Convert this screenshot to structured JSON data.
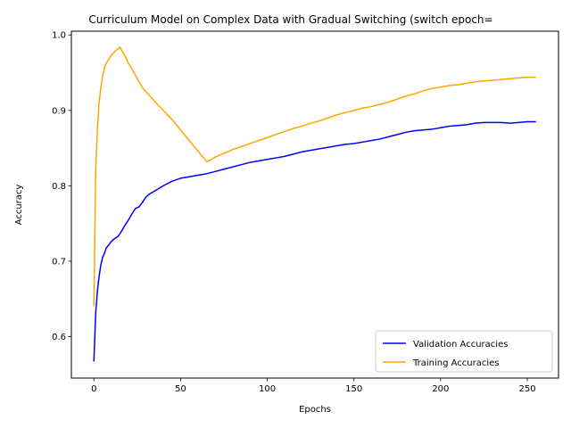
{
  "chart_data": {
    "type": "line",
    "title": "Curriculum Model on Complex Data with Gradual Switching (switch epoch=",
    "xlabel": "Epochs",
    "ylabel": "Accuracy",
    "xlim": [
      -13,
      268
    ],
    "ylim": [
      0.545,
      1.005
    ],
    "xticks": [
      0,
      50,
      100,
      150,
      200,
      250
    ],
    "yticks": [
      0.6,
      0.7,
      0.8,
      0.9,
      1.0
    ],
    "ytick_labels": [
      "0.6",
      "0.7",
      "0.8",
      "0.9",
      "1.0"
    ],
    "grid": false,
    "legend_position": "lower right",
    "series": [
      {
        "name": "Validation Accuracies",
        "color": "#0000ff",
        "x": [
          0,
          1,
          2,
          3,
          4,
          5,
          6,
          7,
          8,
          10,
          12,
          14,
          16,
          18,
          20,
          22,
          24,
          26,
          28,
          30,
          32,
          35,
          40,
          45,
          50,
          55,
          60,
          65,
          70,
          75,
          80,
          85,
          90,
          95,
          100,
          105,
          110,
          115,
          120,
          125,
          130,
          135,
          140,
          145,
          150,
          155,
          160,
          165,
          170,
          175,
          180,
          185,
          190,
          195,
          200,
          205,
          210,
          215,
          220,
          225,
          230,
          235,
          240,
          245,
          250,
          255
        ],
        "y": [
          0.567,
          0.63,
          0.66,
          0.68,
          0.695,
          0.705,
          0.71,
          0.717,
          0.72,
          0.726,
          0.73,
          0.733,
          0.74,
          0.748,
          0.755,
          0.763,
          0.77,
          0.772,
          0.778,
          0.785,
          0.789,
          0.793,
          0.8,
          0.806,
          0.81,
          0.812,
          0.814,
          0.816,
          0.819,
          0.822,
          0.825,
          0.828,
          0.831,
          0.833,
          0.835,
          0.837,
          0.839,
          0.842,
          0.845,
          0.847,
          0.849,
          0.851,
          0.853,
          0.855,
          0.856,
          0.858,
          0.86,
          0.862,
          0.865,
          0.868,
          0.871,
          0.873,
          0.874,
          0.875,
          0.877,
          0.879,
          0.88,
          0.881,
          0.883,
          0.884,
          0.884,
          0.884,
          0.883,
          0.884,
          0.885,
          0.885
        ]
      },
      {
        "name": "Training Accuracies",
        "color": "#ffa500",
        "x": [
          0,
          1,
          2,
          3,
          4,
          5,
          6,
          7,
          8,
          10,
          12,
          14,
          15,
          16,
          18,
          20,
          22,
          24,
          26,
          28,
          30,
          32,
          35,
          40,
          45,
          50,
          55,
          60,
          63,
          65,
          67,
          70,
          75,
          80,
          85,
          90,
          95,
          100,
          105,
          110,
          115,
          120,
          125,
          130,
          135,
          140,
          145,
          150,
          155,
          160,
          165,
          170,
          175,
          180,
          185,
          190,
          195,
          200,
          205,
          210,
          215,
          220,
          225,
          230,
          235,
          240,
          245,
          250,
          255
        ],
        "y": [
          0.64,
          0.82,
          0.875,
          0.91,
          0.93,
          0.945,
          0.956,
          0.962,
          0.966,
          0.973,
          0.978,
          0.982,
          0.984,
          0.98,
          0.972,
          0.962,
          0.955,
          0.946,
          0.938,
          0.93,
          0.925,
          0.92,
          0.912,
          0.9,
          0.888,
          0.874,
          0.86,
          0.846,
          0.838,
          0.832,
          0.834,
          0.838,
          0.843,
          0.848,
          0.852,
          0.856,
          0.86,
          0.864,
          0.868,
          0.872,
          0.876,
          0.879,
          0.883,
          0.886,
          0.89,
          0.894,
          0.897,
          0.9,
          0.903,
          0.905,
          0.908,
          0.911,
          0.915,
          0.919,
          0.922,
          0.926,
          0.929,
          0.931,
          0.933,
          0.934,
          0.936,
          0.938,
          0.939,
          0.94,
          0.941,
          0.942,
          0.943,
          0.944,
          0.944
        ]
      }
    ]
  }
}
